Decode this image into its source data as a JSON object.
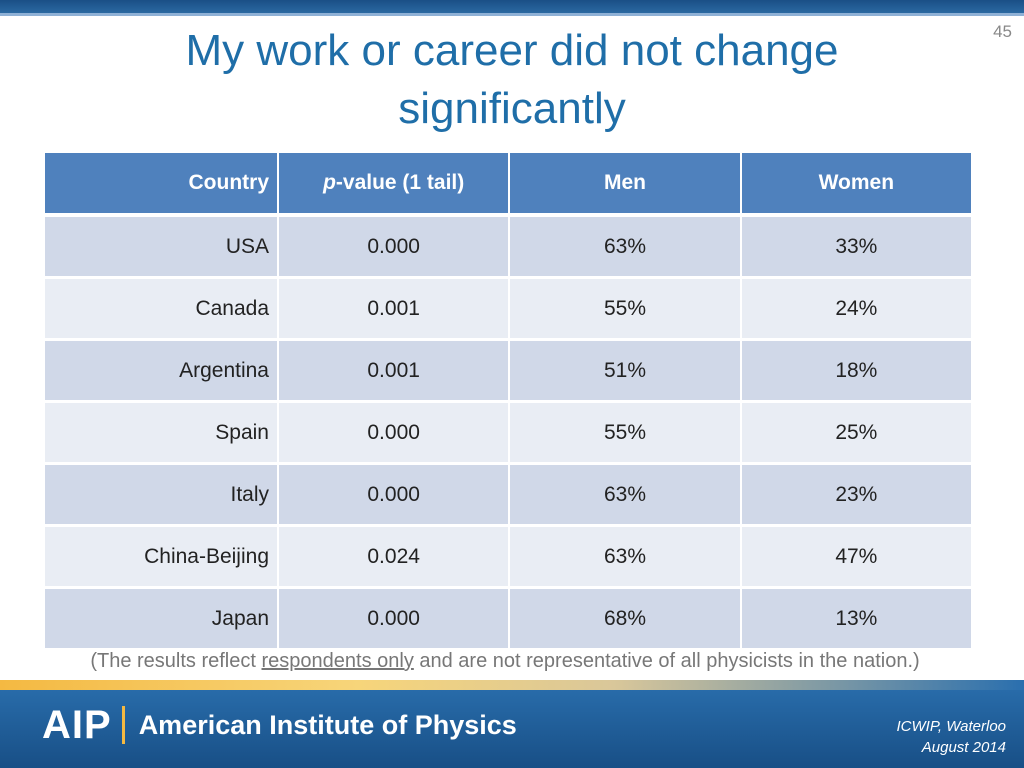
{
  "slide": {
    "number": "45",
    "title": "My work or career did not change significantly"
  },
  "table": {
    "headers": {
      "country": "Country",
      "p_italic": "p",
      "p_rest": "-value (1 tail)",
      "men": "Men",
      "women": "Women"
    },
    "rows": [
      {
        "country": "USA",
        "p": "0.000",
        "men": "63%",
        "women": "33%"
      },
      {
        "country": "Canada",
        "p": "0.001",
        "men": "55%",
        "women": "24%"
      },
      {
        "country": "Argentina",
        "p": "0.001",
        "men": "51%",
        "women": "18%"
      },
      {
        "country": "Spain",
        "p": "0.000",
        "men": "55%",
        "women": "25%"
      },
      {
        "country": "Italy",
        "p": "0.000",
        "men": "63%",
        "women": "23%"
      },
      {
        "country": "China-Beijing",
        "p": "0.024",
        "men": "63%",
        "women": "47%"
      },
      {
        "country": "Japan",
        "p": "0.000",
        "men": "68%",
        "women": "13%"
      }
    ]
  },
  "footnote": {
    "before": "(The results reflect ",
    "underlined": "respondents only",
    "after": " and are not representative of all physicists in the nation.)"
  },
  "footer": {
    "logo_mark": "AIP",
    "logo_text": "American Institute of Physics",
    "event_line1": "ICWIP, Waterloo",
    "event_line2": "August 2014"
  },
  "colors": {
    "header_bg": "#4f81bd",
    "title": "#1f6ea8",
    "footer_bg": "#184f86"
  }
}
